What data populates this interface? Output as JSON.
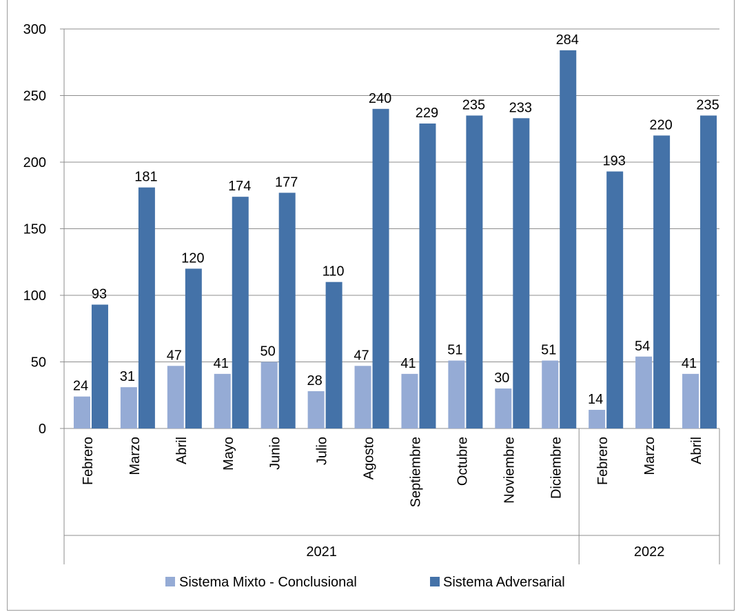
{
  "chart_data": {
    "type": "bar",
    "title": "",
    "xlabel": "",
    "ylabel": "",
    "ylim": [
      0,
      300
    ],
    "yticks": [
      0,
      50,
      100,
      150,
      200,
      250,
      300
    ],
    "grid": true,
    "legend_position": "bottom",
    "categories": [
      "Febrero",
      "Marzo",
      "Abril",
      "Mayo",
      "Junio",
      "Julio",
      "Agosto",
      "Septiembre",
      "Octubre",
      "Noviembre",
      "Diciembre",
      "Febrero",
      "Marzo",
      "Abril"
    ],
    "groups": [
      {
        "label": "2021",
        "count": 11
      },
      {
        "label": "2022",
        "count": 3
      }
    ],
    "series": [
      {
        "name": "Sistema Mixto - Conclusional",
        "color": "#95abd5",
        "values": [
          24,
          31,
          47,
          41,
          50,
          28,
          47,
          41,
          51,
          30,
          51,
          14,
          54,
          41
        ]
      },
      {
        "name": "Sistema Adversarial",
        "color": "#4472a8",
        "values": [
          93,
          181,
          120,
          174,
          177,
          110,
          240,
          229,
          235,
          233,
          284,
          193,
          220,
          235
        ]
      }
    ]
  }
}
